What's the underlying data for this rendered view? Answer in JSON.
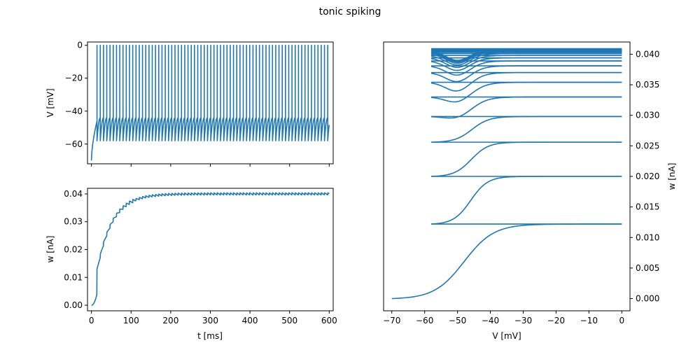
{
  "figure": {
    "title": "tonic spiking"
  },
  "colors": {
    "series": "#1f77b4"
  },
  "chart_data": [
    {
      "type": "line",
      "xlabel": "",
      "ylabel": "V [mV]",
      "xlim": [
        -10,
        610
      ],
      "ylim": [
        -72,
        2
      ],
      "xticks": [
        0,
        100,
        200,
        300,
        400,
        500,
        600
      ],
      "xticks_labeled": false,
      "yticks": [
        0,
        -20,
        -40,
        -60
      ],
      "ytick_labels": [
        "0",
        "−20",
        "−40",
        "−60"
      ],
      "trace": {
        "start_v": -70,
        "reset_v": -58,
        "peak_v": 0,
        "first_spike_t": 14,
        "interval_ms": 8.2,
        "end_t": 600,
        "end_v": -52
      }
    },
    {
      "type": "line",
      "xlabel": "t [ms]",
      "ylabel": "w [nA]",
      "xlim": [
        -10,
        610
      ],
      "ylim": [
        -0.002,
        0.042
      ],
      "xticks": [
        0,
        100,
        200,
        300,
        400,
        500,
        600
      ],
      "xtick_labels": [
        "0",
        "100",
        "200",
        "300",
        "400",
        "500",
        "600"
      ],
      "yticks": [
        0,
        0.01,
        0.02,
        0.03,
        0.04
      ],
      "ytick_labels": [
        "0.00",
        "0.01",
        "0.02",
        "0.03",
        "0.04"
      ],
      "trace": {
        "w_steady": 0.04,
        "ripple": 0.0008,
        "interval_ms": 8.2,
        "first_spike_t": 14
      }
    },
    {
      "type": "line",
      "xlabel": "V [mV]",
      "ylabel": "w [nA]",
      "yaxis_side": "right",
      "xlim": [
        -72.5,
        2.5
      ],
      "ylim": [
        -0.002,
        0.042
      ],
      "xticks": [
        -70,
        -60,
        -50,
        -40,
        -30,
        -20,
        -10,
        0
      ],
      "xtick_labels": [
        "−70",
        "−60",
        "−50",
        "−40",
        "−30",
        "−20",
        "−10",
        "0"
      ],
      "yticks": [
        0,
        0.005,
        0.01,
        0.015,
        0.02,
        0.025,
        0.03,
        0.035,
        0.04
      ],
      "ytick_labels": [
        "0.000",
        "0.005",
        "0.010",
        "0.015",
        "0.020",
        "0.025",
        "0.030",
        "0.035",
        "0.040"
      ],
      "trace": {
        "start": [
          -70,
          0.0
        ],
        "reset_v": -58,
        "peak_v": 0,
        "w_after_spike": [
          0.0122,
          0.02,
          0.0256,
          0.0298,
          0.033,
          0.0354,
          0.037,
          0.0381,
          0.0389,
          0.0394,
          0.0398,
          0.0401,
          0.0403,
          0.0404,
          0.0405,
          0.0406
        ],
        "w_steady": 0.0406
      }
    }
  ]
}
